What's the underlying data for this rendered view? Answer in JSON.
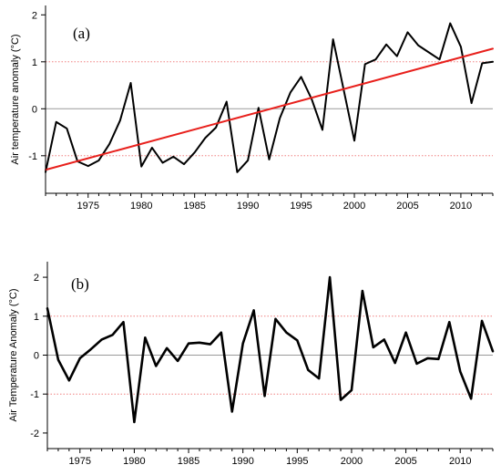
{
  "chart_data": [
    {
      "type": "line",
      "panel_label": "(a)",
      "ylabel": "Air temperature anomaly (°C)",
      "xlim": [
        1971,
        2013
      ],
      "ylim": [
        -1.8,
        2.2
      ],
      "x_ticks": [
        1975,
        1980,
        1985,
        1990,
        1995,
        2000,
        2005,
        2010
      ],
      "y_ticks": [
        -1,
        0,
        1,
        2
      ],
      "zero_line": 0,
      "reference_lines": [
        1,
        -1
      ],
      "x": [
        1971,
        1972,
        1973,
        1974,
        1975,
        1976,
        1977,
        1978,
        1979,
        1980,
        1981,
        1982,
        1983,
        1984,
        1985,
        1986,
        1987,
        1988,
        1989,
        1990,
        1991,
        1992,
        1993,
        1994,
        1995,
        1996,
        1997,
        1998,
        1999,
        2000,
        2001,
        2002,
        2003,
        2004,
        2005,
        2006,
        2007,
        2008,
        2009,
        2010,
        2011,
        2012,
        2013
      ],
      "series": [
        {
          "values": [
            -1.35,
            -0.28,
            -0.42,
            -1.12,
            -1.22,
            -1.1,
            -0.75,
            -0.25,
            0.55,
            -1.23,
            -0.83,
            -1.15,
            -1.02,
            -1.18,
            -0.93,
            -0.62,
            -0.4,
            0.15,
            -1.35,
            -1.1,
            0.02,
            -1.08,
            -0.2,
            0.35,
            0.68,
            0.2,
            -0.45,
            1.48,
            0.4,
            -0.68,
            0.95,
            1.05,
            1.37,
            1.12,
            1.63,
            1.35,
            1.2,
            1.05,
            1.82,
            1.32,
            0.12,
            0.97,
            1.0
          ],
          "color": "#000000"
        },
        {
          "type": "trend",
          "values": [
            -1.3,
            1.28
          ],
          "x": [
            1971,
            2013
          ],
          "color": "#e8201c"
        }
      ]
    },
    {
      "type": "line",
      "panel_label": "(b)",
      "ylabel": "Air Temperature Anomaly (°C)",
      "xlim": [
        1972,
        2013
      ],
      "ylim": [
        -2.4,
        2.4
      ],
      "x_ticks": [
        1975,
        1980,
        1985,
        1990,
        1995,
        2000,
        2005,
        2010
      ],
      "y_ticks": [
        -2,
        -1,
        0,
        1,
        2
      ],
      "zero_line": 0,
      "reference_lines": [
        1,
        -1
      ],
      "x": [
        1972,
        1973,
        1974,
        1975,
        1976,
        1977,
        1978,
        1979,
        1980,
        1981,
        1982,
        1983,
        1984,
        1985,
        1986,
        1987,
        1988,
        1989,
        1990,
        1991,
        1992,
        1993,
        1994,
        1995,
        1996,
        1997,
        1998,
        1999,
        2000,
        2001,
        2002,
        2003,
        2004,
        2005,
        2006,
        2007,
        2008,
        2009,
        2010,
        2011,
        2012,
        2013
      ],
      "series": [
        {
          "values": [
            1.2,
            -0.12,
            -0.65,
            -0.08,
            0.15,
            0.4,
            0.52,
            0.85,
            -1.72,
            0.45,
            -0.28,
            0.18,
            -0.15,
            0.3,
            0.32,
            0.28,
            0.58,
            -1.45,
            0.3,
            1.15,
            -1.05,
            0.93,
            0.58,
            0.38,
            -0.38,
            -0.6,
            2.0,
            -1.15,
            -0.9,
            1.65,
            0.2,
            0.4,
            -0.2,
            0.58,
            -0.22,
            -0.08,
            -0.1,
            0.85,
            -0.42,
            -1.12,
            0.88,
            0.1
          ],
          "color": "#000000"
        }
      ]
    }
  ]
}
